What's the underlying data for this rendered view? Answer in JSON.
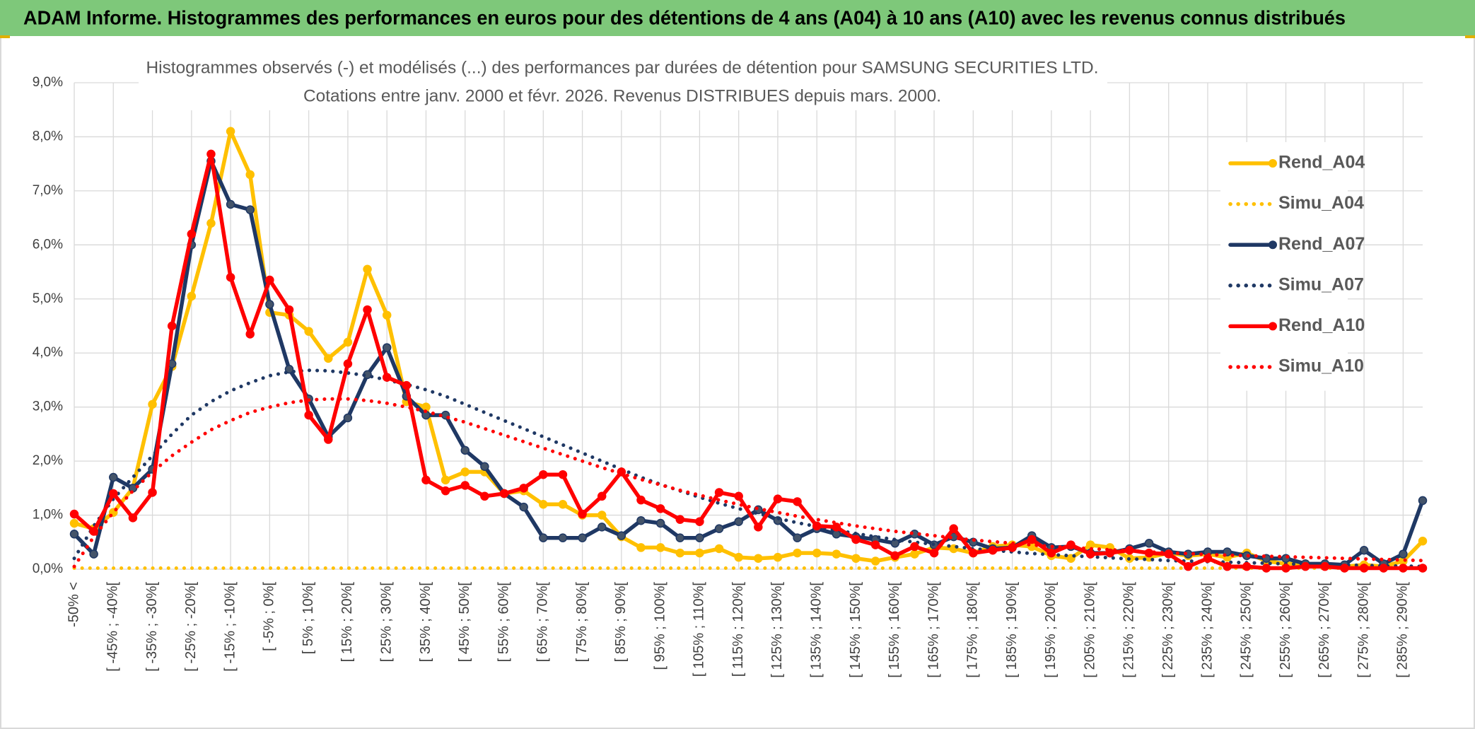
{
  "chart_data": {
    "type": "line",
    "title": "ADAM Informe. Histogrammes des performances en euros pour des détentions de 4 ans (A04) à 10 ans (A10) avec les revenus connus distribués",
    "subtitle": [
      "Histogrammes observés (-) et modélisés (...) des performances par durées de détention pour SAMSUNG SECURITIES LTD.",
      "Cotations entre janv. 2000 et févr. 2026. Revenus DISTRIBUES depuis mars. 2000."
    ],
    "categories": [
      "-50% <",
      null,
      "[ -45% ; -40%[",
      null,
      "[ -35% ; -30%[",
      null,
      "[ -25% ; -20%[",
      null,
      "[ -15% ; -10%[",
      null,
      "[ -5% ; 0%[",
      null,
      "[ 5% ; 10%[",
      null,
      "[ 15% ; 20%[",
      null,
      "[ 25% ; 30%[",
      null,
      "[ 35% ; 40%[",
      null,
      "[ 45% ; 50%[",
      null,
      "[ 55% ; 60%[",
      null,
      "[ 65% ; 70%[",
      null,
      "[ 75% ; 80%[",
      null,
      "[ 85% ; 90%[",
      null,
      "[ 95% ; 100%[",
      null,
      "[ 105% ; 110%[",
      null,
      "[ 115% ; 120%[",
      null,
      "[ 125% ; 130%[",
      null,
      "[ 135% ; 140%[",
      null,
      "[ 145% ; 150%[",
      null,
      "[ 155% ; 160%[",
      null,
      "[ 165% ; 170%[",
      null,
      "[ 175% ; 180%[",
      null,
      "[ 185% ; 190%[",
      null,
      "[ 195% ; 200%[",
      null,
      "[ 205% ; 210%[",
      null,
      "[ 215% ; 220%[",
      null,
      "[ 225% ; 230%[",
      null,
      "[ 235% ; 240%[",
      null,
      "[ 245% ; 250%[",
      null,
      "[ 255% ; 260%[",
      null,
      "[ 265% ; 270%[",
      null,
      "[ 275% ; 280%[",
      null,
      "[ 285% ; 290%[",
      null
    ],
    "series": [
      {
        "name": "Rend_A04",
        "color": "#ffc000",
        "line_style": "solid",
        "values": [
          0.85,
          0.75,
          1.05,
          1.5,
          3.05,
          3.75,
          5.05,
          6.4,
          8.1,
          7.3,
          4.75,
          4.7,
          4.4,
          3.9,
          4.2,
          5.55,
          4.7,
          3.1,
          3.0,
          1.65,
          1.8,
          1.8,
          1.4,
          1.45,
          1.2,
          1.2,
          1.0,
          1.0,
          0.6,
          0.4,
          0.4,
          0.3,
          0.3,
          0.38,
          0.22,
          0.2,
          0.22,
          0.3,
          0.3,
          0.28,
          0.2,
          0.15,
          0.22,
          0.28,
          0.4,
          0.38,
          0.3,
          0.42,
          0.45,
          0.42,
          0.25,
          0.2,
          0.45,
          0.4,
          0.2,
          0.22,
          0.3,
          0.25,
          0.28,
          0.22,
          0.3,
          0.15,
          0.1,
          0.1,
          0.08,
          0.05,
          0.08,
          0.05,
          0.15,
          0.52
        ]
      },
      {
        "name": "Simu_A04",
        "color": "#ffc000",
        "line_style": "dotted",
        "values": [
          0.02,
          0.02,
          0.02,
          0.02,
          0.02,
          0.02,
          0.02,
          0.02,
          0.02,
          0.02,
          0.02,
          0.02,
          0.02,
          0.02,
          0.02,
          0.02,
          0.02,
          0.02,
          0.02,
          0.02,
          0.02,
          0.02,
          0.02,
          0.02,
          0.02,
          0.02,
          0.02,
          0.02,
          0.02,
          0.02,
          0.02,
          0.02,
          0.02,
          0.02,
          0.02,
          0.02,
          0.02,
          0.02,
          0.02,
          0.02,
          0.02,
          0.02,
          0.02,
          0.02,
          0.02,
          0.02,
          0.02,
          0.02,
          0.02,
          0.02,
          0.02,
          0.02,
          0.02,
          0.02,
          0.02,
          0.02,
          0.02,
          0.02,
          0.02,
          0.02,
          0.02,
          0.02,
          0.02,
          0.02,
          0.02,
          0.02,
          0.02,
          0.02,
          0.02,
          0.02
        ]
      },
      {
        "name": "Rend_A07",
        "color": "#1f3864",
        "line_style": "solid",
        "values": [
          0.65,
          0.28,
          1.7,
          1.5,
          1.85,
          3.8,
          6.0,
          7.55,
          6.75,
          6.65,
          4.9,
          3.7,
          3.15,
          2.45,
          2.8,
          3.6,
          4.1,
          3.2,
          2.85,
          2.85,
          2.2,
          1.9,
          1.4,
          1.15,
          0.58,
          0.58,
          0.58,
          0.78,
          0.62,
          0.9,
          0.85,
          0.58,
          0.58,
          0.75,
          0.88,
          1.1,
          0.9,
          0.58,
          0.75,
          0.65,
          0.6,
          0.55,
          0.48,
          0.65,
          0.45,
          0.6,
          0.5,
          0.38,
          0.4,
          0.62,
          0.4,
          0.42,
          0.3,
          0.3,
          0.38,
          0.48,
          0.32,
          0.28,
          0.32,
          0.32,
          0.25,
          0.2,
          0.2,
          0.1,
          0.1,
          0.08,
          0.35,
          0.1,
          0.28,
          1.27
        ]
      },
      {
        "name": "Simu_A07",
        "color": "#1f3864",
        "line_style": "dotted",
        "values": [
          0.2,
          0.8,
          1.3,
          1.7,
          2.1,
          2.5,
          2.85,
          3.1,
          3.3,
          3.45,
          3.58,
          3.65,
          3.68,
          3.67,
          3.63,
          3.58,
          3.5,
          3.42,
          3.32,
          3.2,
          3.05,
          2.9,
          2.75,
          2.6,
          2.45,
          2.3,
          2.15,
          2.0,
          1.85,
          1.7,
          1.57,
          1.45,
          1.33,
          1.22,
          1.12,
          1.03,
          0.94,
          0.86,
          0.79,
          0.72,
          0.66,
          0.6,
          0.55,
          0.5,
          0.46,
          0.42,
          0.38,
          0.35,
          0.32,
          0.29,
          0.27,
          0.25,
          0.23,
          0.21,
          0.19,
          0.18,
          0.16,
          0.15,
          0.14,
          0.13,
          0.12,
          0.11,
          0.1,
          0.09,
          0.08,
          0.08,
          0.07,
          0.06,
          0.06,
          0.05
        ]
      },
      {
        "name": "Rend_A10",
        "color": "#ff0000",
        "line_style": "solid",
        "values": [
          1.02,
          0.7,
          1.4,
          0.95,
          1.42,
          4.5,
          6.2,
          7.68,
          5.4,
          4.35,
          5.35,
          4.8,
          2.85,
          2.4,
          3.8,
          4.8,
          3.55,
          3.4,
          1.65,
          1.45,
          1.55,
          1.35,
          1.4,
          1.5,
          1.75,
          1.75,
          1.02,
          1.35,
          1.8,
          1.28,
          1.12,
          0.92,
          0.88,
          1.42,
          1.35,
          0.78,
          1.3,
          1.25,
          0.8,
          0.78,
          0.55,
          0.45,
          0.25,
          0.42,
          0.3,
          0.75,
          0.3,
          0.35,
          0.4,
          0.55,
          0.3,
          0.45,
          0.28,
          0.3,
          0.35,
          0.3,
          0.28,
          0.05,
          0.2,
          0.05,
          0.05,
          0.02,
          0.02,
          0.05,
          0.05,
          0.02,
          0.02,
          0.02,
          0.02,
          0.02
        ]
      },
      {
        "name": "Simu_A10",
        "color": "#ff0000",
        "line_style": "dotted",
        "values": [
          0.05,
          0.6,
          1.05,
          1.45,
          1.8,
          2.1,
          2.35,
          2.58,
          2.75,
          2.9,
          3.0,
          3.08,
          3.13,
          3.15,
          3.15,
          3.12,
          3.07,
          3.0,
          2.92,
          2.82,
          2.72,
          2.6,
          2.48,
          2.36,
          2.24,
          2.12,
          2.0,
          1.88,
          1.77,
          1.66,
          1.56,
          1.46,
          1.37,
          1.28,
          1.2,
          1.12,
          1.05,
          0.98,
          0.92,
          0.86,
          0.8,
          0.75,
          0.7,
          0.66,
          0.62,
          0.58,
          0.54,
          0.51,
          0.48,
          0.45,
          0.42,
          0.4,
          0.38,
          0.36,
          0.34,
          0.32,
          0.3,
          0.29,
          0.27,
          0.26,
          0.25,
          0.24,
          0.23,
          0.22,
          0.21,
          0.2,
          0.19,
          0.18,
          0.17,
          0.16
        ]
      }
    ],
    "ylim": [
      0,
      9
    ],
    "yticks": [
      {
        "value": 0,
        "label": "0,0%"
      },
      {
        "value": 1,
        "label": "1,0%"
      },
      {
        "value": 2,
        "label": "2,0%"
      },
      {
        "value": 3,
        "label": "3,0%"
      },
      {
        "value": 4,
        "label": "4,0%"
      },
      {
        "value": 5,
        "label": "5,0%"
      },
      {
        "value": 6,
        "label": "6,0%"
      },
      {
        "value": 7,
        "label": "7,0%"
      },
      {
        "value": 8,
        "label": "8,0%"
      },
      {
        "value": 9,
        "label": "9,0%"
      }
    ],
    "grid": true,
    "legend": "right"
  }
}
